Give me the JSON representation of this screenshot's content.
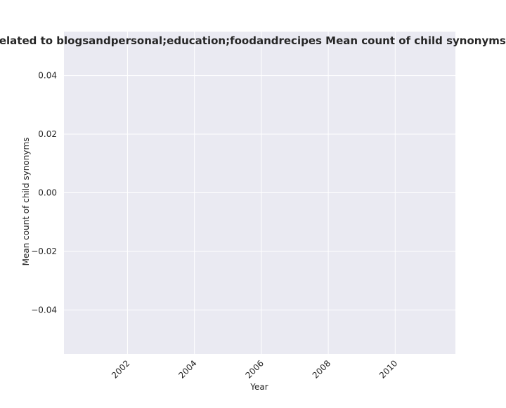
{
  "chart_data": {
    "type": "line",
    "title": "re related to blogsandpersonal;education;foodandrecipes Mean count of child synonyms in pri",
    "xlabel": "Year",
    "ylabel": "Mean count of child synonyms",
    "x_ticks": [
      2002,
      2004,
      2006,
      2008,
      2010
    ],
    "y_ticks": [
      -0.04,
      -0.02,
      0.0,
      0.02,
      0.04
    ],
    "y_tick_labels": [
      "−0.04",
      "−0.02",
      "0.00",
      "0.02",
      "0.04"
    ],
    "xlim": [
      2000.1,
      2011.8
    ],
    "ylim": [
      -0.055,
      0.055
    ],
    "grid": true,
    "series": [],
    "colors": {
      "plot_background": "#EAEAF2",
      "grid": "#FFFFFF",
      "text": "#262626"
    }
  }
}
